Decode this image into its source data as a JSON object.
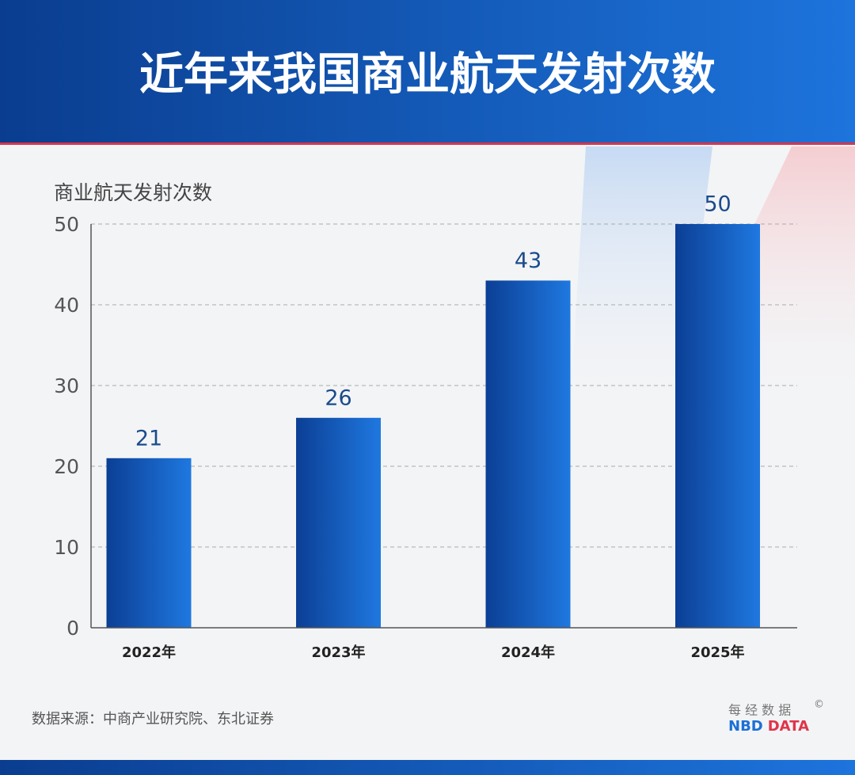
{
  "chart_data": {
    "type": "bar",
    "title": "近年来我国商业航天发射次数",
    "y_label": "商业航天发射次数",
    "categories": [
      "2022年",
      "2023年",
      "2024年",
      "2025年"
    ],
    "values": [
      21,
      26,
      43,
      50
    ],
    "color": "#1f78e0",
    "ylim": [
      0,
      50
    ],
    "yticks": [
      0,
      10,
      20,
      30,
      40,
      50
    ],
    "grid": true,
    "source": "数据来源：中商产业研究院、东北证券"
  },
  "logo": {
    "top": "每 经 数 据",
    "nbd": "NBD",
    "data": "DATA",
    "mark": "©"
  }
}
